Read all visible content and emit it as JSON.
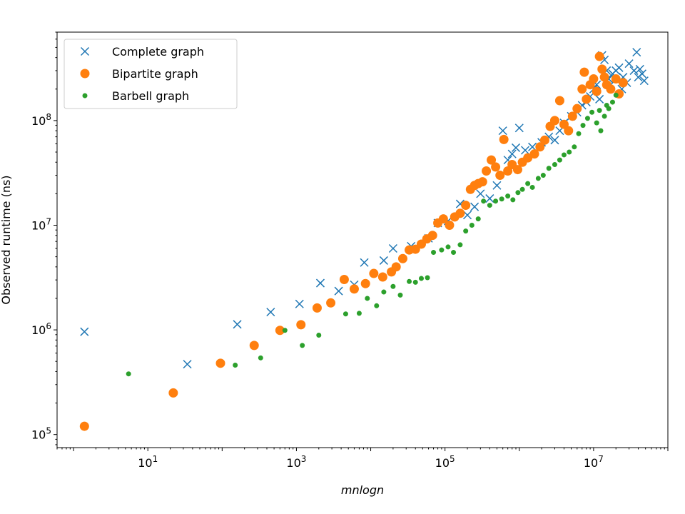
{
  "chart_data": {
    "type": "scatter",
    "xlabel": "mnlogn",
    "ylabel": "Observed runtime (ns)",
    "xscale": "log",
    "yscale": "log",
    "xlim": [
      0.6,
      100000000.0
    ],
    "ylim": [
      75000.0,
      700000000.0
    ],
    "x_ticks": [
      10,
      1000,
      100000,
      10000000
    ],
    "x_tick_labels": [
      {
        "base": "10",
        "exp": "1"
      },
      {
        "base": "10",
        "exp": "3"
      },
      {
        "base": "10",
        "exp": "5"
      },
      {
        "base": "10",
        "exp": "7"
      }
    ],
    "y_ticks": [
      100000,
      1000000,
      10000000,
      100000000
    ],
    "y_tick_labels": [
      {
        "base": "10",
        "exp": "5"
      },
      {
        "base": "10",
        "exp": "6"
      },
      {
        "base": "10",
        "exp": "7"
      },
      {
        "base": "10",
        "exp": "8"
      }
    ],
    "legend_position": "top-left",
    "grid": false,
    "series": [
      {
        "name": "Complete graph",
        "marker": "x",
        "color": "#1f77b4",
        "points": [
          [
            1.4,
            960000
          ],
          [
            34,
            470000
          ],
          [
            160,
            1130000
          ],
          [
            450,
            1480000
          ],
          [
            1100,
            1770000
          ],
          [
            2100,
            2800000
          ],
          [
            3700,
            2350000
          ],
          [
            6000,
            2700000
          ],
          [
            8200,
            4400000
          ],
          [
            15000,
            4600000
          ],
          [
            20000,
            6000000
          ],
          [
            35000,
            6300000
          ],
          [
            60000,
            7500000
          ],
          [
            80000,
            10500000
          ],
          [
            110000,
            11000000
          ],
          [
            160000,
            16000000
          ],
          [
            200000,
            12500000
          ],
          [
            250000,
            15000000
          ],
          [
            300000,
            20000000
          ],
          [
            400000,
            18000000
          ],
          [
            500000,
            24000000
          ],
          [
            600000,
            80000000
          ],
          [
            700000,
            42000000
          ],
          [
            800000,
            48000000
          ],
          [
            900000,
            55000000
          ],
          [
            1000000,
            85000000
          ],
          [
            1200000,
            52000000
          ],
          [
            1500000,
            56000000
          ],
          [
            2000000,
            62000000
          ],
          [
            2500000,
            70000000
          ],
          [
            3000000,
            65000000
          ],
          [
            3500000,
            80000000
          ],
          [
            4000000,
            95000000
          ],
          [
            5000000,
            110000000
          ],
          [
            6000000,
            120000000
          ],
          [
            7000000,
            140000000
          ],
          [
            8000000,
            150000000
          ],
          [
            9000000,
            170000000
          ],
          [
            10000000,
            200000000
          ],
          [
            11000000,
            220000000
          ],
          [
            12000000,
            160000000
          ],
          [
            13000000,
            420000000
          ],
          [
            14000000,
            380000000
          ],
          [
            15000000,
            300000000
          ],
          [
            16000000,
            250000000
          ],
          [
            18000000,
            280000000
          ],
          [
            20000000,
            300000000
          ],
          [
            22000000,
            320000000
          ],
          [
            25000000,
            260000000
          ],
          [
            28000000,
            230000000
          ],
          [
            30000000,
            350000000
          ],
          [
            35000000,
            300000000
          ],
          [
            38000000,
            450000000
          ],
          [
            40000000,
            260000000
          ],
          [
            42000000,
            310000000
          ],
          [
            45000000,
            280000000
          ],
          [
            48000000,
            240000000
          ],
          [
            17000000,
            220000000
          ],
          [
            24000000,
            200000000
          ]
        ]
      },
      {
        "name": "Bipartite graph",
        "marker": "o",
        "color": "#ff7f0e",
        "points": [
          [
            1.4,
            120000
          ],
          [
            22,
            250000
          ],
          [
            95,
            480000
          ],
          [
            270,
            710000
          ],
          [
            600,
            990000
          ],
          [
            1150,
            1120000
          ],
          [
            1900,
            1620000
          ],
          [
            2900,
            1810000
          ],
          [
            4400,
            3030000
          ],
          [
            6000,
            2460000
          ],
          [
            8500,
            2770000
          ],
          [
            11000,
            3460000
          ],
          [
            14500,
            3200000
          ],
          [
            19000,
            3580000
          ],
          [
            22000,
            4000000
          ],
          [
            27000,
            4800000
          ],
          [
            33000,
            5800000
          ],
          [
            40000,
            5900000
          ],
          [
            48000,
            6600000
          ],
          [
            57000,
            7400000
          ],
          [
            68000,
            8000000
          ],
          [
            80000,
            10500000
          ],
          [
            95000,
            11500000
          ],
          [
            115000,
            10000000
          ],
          [
            135000,
            12000000
          ],
          [
            160000,
            13000000
          ],
          [
            190000,
            15500000
          ],
          [
            220000,
            22000000
          ],
          [
            250000,
            24000000
          ],
          [
            280000,
            25000000
          ],
          [
            320000,
            26000000
          ],
          [
            360000,
            33000000
          ],
          [
            420000,
            42000000
          ],
          [
            480000,
            36000000
          ],
          [
            550000,
            30000000
          ],
          [
            620000,
            66000000
          ],
          [
            700000,
            33000000
          ],
          [
            800000,
            38000000
          ],
          [
            950000,
            34000000
          ],
          [
            1100000,
            40000000
          ],
          [
            1300000,
            44000000
          ],
          [
            1600000,
            48000000
          ],
          [
            1900000,
            56000000
          ],
          [
            2200000,
            65000000
          ],
          [
            2600000,
            88000000
          ],
          [
            3000000,
            100000000
          ],
          [
            3500000,
            155000000
          ],
          [
            4000000,
            92000000
          ],
          [
            4600000,
            80000000
          ],
          [
            5200000,
            110000000
          ],
          [
            6000000,
            130000000
          ],
          [
            7000000,
            200000000
          ],
          [
            7500000,
            290000000
          ],
          [
            8000000,
            160000000
          ],
          [
            9000000,
            220000000
          ],
          [
            10000000,
            250000000
          ],
          [
            11000000,
            190000000
          ],
          [
            12000000,
            410000000
          ],
          [
            13000000,
            310000000
          ],
          [
            14000000,
            260000000
          ],
          [
            15000000,
            220000000
          ],
          [
            17000000,
            200000000
          ],
          [
            20000000,
            250000000
          ],
          [
            22000000,
            180000000
          ],
          [
            25000000,
            230000000
          ]
        ]
      },
      {
        "name": "Barbell graph",
        "marker": ".",
        "color": "#2ca02c",
        "points": [
          [
            5.5,
            380000
          ],
          [
            150,
            460000
          ],
          [
            330,
            540000
          ],
          [
            700,
            990000
          ],
          [
            1200,
            710000
          ],
          [
            2000,
            890000
          ],
          [
            4600,
            1420000
          ],
          [
            7000,
            1440000
          ],
          [
            9000,
            2000000
          ],
          [
            12000,
            1700000
          ],
          [
            15000,
            2300000
          ],
          [
            20000,
            2600000
          ],
          [
            25000,
            2150000
          ],
          [
            33000,
            2900000
          ],
          [
            40000,
            2850000
          ],
          [
            48000,
            3100000
          ],
          [
            58000,
            3150000
          ],
          [
            70000,
            5500000
          ],
          [
            90000,
            5800000
          ],
          [
            110000,
            6200000
          ],
          [
            130000,
            5500000
          ],
          [
            160000,
            6500000
          ],
          [
            190000,
            8800000
          ],
          [
            230000,
            10000000
          ],
          [
            280000,
            11500000
          ],
          [
            330000,
            17000000
          ],
          [
            400000,
            15500000
          ],
          [
            480000,
            17000000
          ],
          [
            580000,
            17800000
          ],
          [
            700000,
            19000000
          ],
          [
            820000,
            17500000
          ],
          [
            960000,
            20500000
          ],
          [
            1100000,
            22000000
          ],
          [
            1300000,
            25000000
          ],
          [
            1500000,
            23000000
          ],
          [
            1800000,
            28000000
          ],
          [
            2100000,
            30000000
          ],
          [
            2500000,
            35000000
          ],
          [
            3000000,
            38000000
          ],
          [
            3500000,
            42000000
          ],
          [
            4000000,
            47000000
          ],
          [
            4700000,
            50000000
          ],
          [
            5500000,
            56000000
          ],
          [
            6300000,
            75000000
          ],
          [
            7200000,
            90000000
          ],
          [
            8300000,
            105000000
          ],
          [
            9500000,
            120000000
          ],
          [
            11000000,
            95000000
          ],
          [
            12500000,
            80000000
          ],
          [
            14000000,
            110000000
          ],
          [
            16000000,
            130000000
          ],
          [
            18000000,
            150000000
          ],
          [
            20000000,
            175000000
          ],
          [
            12000000,
            125000000
          ],
          [
            15000000,
            140000000
          ]
        ]
      }
    ]
  }
}
